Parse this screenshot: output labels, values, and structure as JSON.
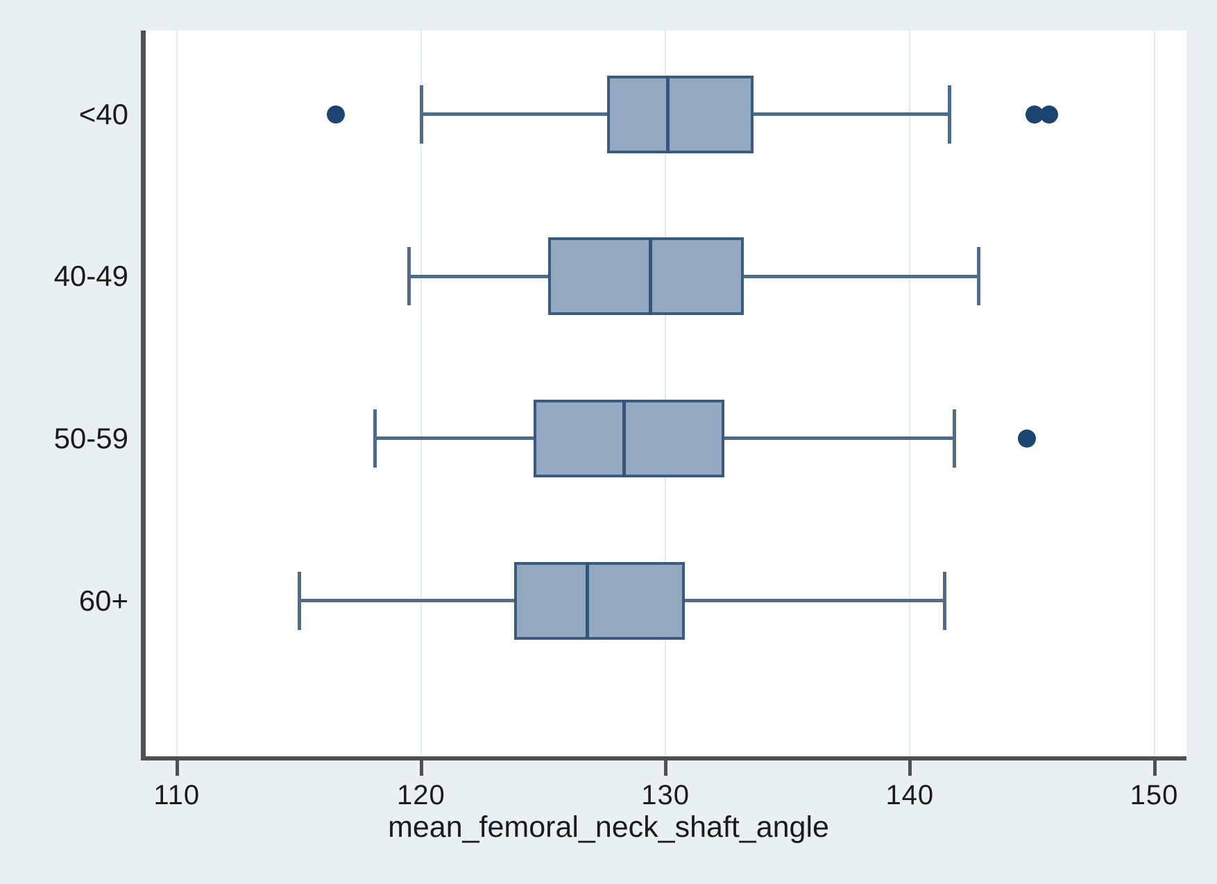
{
  "chart_data": {
    "type": "boxplot",
    "orientation": "horizontal",
    "title": "",
    "xlabel": "mean_femoral_neck_shaft_angle",
    "ylabel": "",
    "x_ticks": [
      110,
      120,
      130,
      140,
      150
    ],
    "x_tick_labels": [
      "110",
      "120",
      "130",
      "140",
      "150"
    ],
    "x_range": [
      108.73,
      151.32
    ],
    "grid": "faint vertical gridlines at each x tick",
    "legend": "none",
    "groups": [
      {
        "label": "<40",
        "whisker_low": 120.0,
        "q1": 127.6,
        "median": 130.1,
        "q3": 133.6,
        "whisker_high": 141.6,
        "outliers": [
          116.5,
          145.1,
          145.7
        ]
      },
      {
        "label": "40-49",
        "whisker_low": 119.5,
        "q1": 125.2,
        "median": 129.4,
        "q3": 133.2,
        "whisker_high": 142.8,
        "outliers": []
      },
      {
        "label": "50-59",
        "whisker_low": 118.1,
        "q1": 124.6,
        "median": 128.3,
        "q3": 132.4,
        "whisker_high": 141.8,
        "outliers": [
          144.8
        ]
      },
      {
        "label": "60+",
        "whisker_low": 115.0,
        "q1": 123.8,
        "median": 126.8,
        "q3": 130.8,
        "whisker_high": 141.4,
        "outliers": []
      }
    ],
    "colors": {
      "page_background": "#e9f0f4",
      "plot_background": "#ffffff",
      "gridline": "#e2eaee",
      "axis_line": "#4d5156",
      "box_fill": "#93a9c1",
      "box_border": "#3a5a7e",
      "median": "#34547a",
      "whisker": "#4e6b8a",
      "outlier": "#1c4470",
      "text": "#1b1b1b"
    }
  }
}
